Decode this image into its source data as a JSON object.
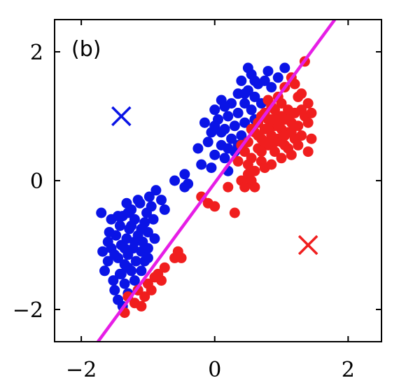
{
  "chart_data": {
    "type": "scatter",
    "title": "",
    "panel_label": "(b)",
    "xlabel": "",
    "ylabel": "",
    "xlim": [
      -2.4,
      2.5
    ],
    "ylim": [
      -2.5,
      2.5
    ],
    "xticks": [
      -2,
      0,
      2
    ],
    "yticks": [
      -2,
      0,
      2
    ],
    "xtick_labels": [
      "−2",
      "0",
      "2"
    ],
    "ytick_labels": [
      "−2",
      "0",
      "2"
    ],
    "grid": false,
    "legend": "none",
    "series": [
      {
        "color": "#0a14e6",
        "marker": "circle",
        "points": [
          [
            -1.65,
            -1.4
          ],
          [
            -1.6,
            -1.25
          ],
          [
            -1.55,
            -1.05
          ],
          [
            -1.52,
            -1.55
          ],
          [
            -1.5,
            -1.7
          ],
          [
            -1.48,
            -0.85
          ],
          [
            -1.45,
            -1.2
          ],
          [
            -1.45,
            -1.85
          ],
          [
            -1.42,
            -0.7
          ],
          [
            -1.4,
            -1.0
          ],
          [
            -1.4,
            -1.45
          ],
          [
            -1.38,
            -0.55
          ],
          [
            -1.35,
            -1.3
          ],
          [
            -1.35,
            -1.6
          ],
          [
            -1.32,
            -0.9
          ],
          [
            -1.3,
            -1.15
          ],
          [
            -1.3,
            -1.75
          ],
          [
            -1.28,
            -0.75
          ],
          [
            -1.25,
            -1.4
          ],
          [
            -1.25,
            -0.45
          ],
          [
            -1.22,
            -1.05
          ],
          [
            -1.2,
            -1.55
          ],
          [
            -1.2,
            -0.6
          ],
          [
            -1.18,
            -1.25
          ],
          [
            -1.15,
            -0.85
          ],
          [
            -1.15,
            -1.7
          ],
          [
            -1.12,
            -0.35
          ],
          [
            -1.1,
            -1.1
          ],
          [
            -1.1,
            -1.4
          ],
          [
            -1.08,
            -0.95
          ],
          [
            -1.05,
            -0.65
          ],
          [
            -1.05,
            -1.25
          ],
          [
            -1.02,
            -0.5
          ],
          [
            -1.0,
            -1.05
          ],
          [
            -1.0,
            -0.8
          ],
          [
            -0.98,
            -0.25
          ],
          [
            -0.95,
            -0.4
          ],
          [
            -0.92,
            -0.6
          ],
          [
            -0.9,
            -0.9
          ],
          [
            -0.88,
            -0.15
          ],
          [
            -1.7,
            -0.5
          ],
          [
            -1.6,
            -0.95
          ],
          [
            -1.55,
            -0.6
          ],
          [
            -1.68,
            -1.1
          ],
          [
            -1.45,
            -0.55
          ],
          [
            -1.3,
            -0.5
          ],
          [
            -1.15,
            -0.3
          ],
          [
            -1.2,
            -0.95
          ],
          [
            -1.35,
            -1.05
          ],
          [
            -1.25,
            -0.7
          ],
          [
            -0.8,
            -0.3
          ],
          [
            -0.75,
            -0.45
          ],
          [
            -1.58,
            -0.8
          ],
          [
            -1.42,
            -1.45
          ],
          [
            -1.38,
            -1.95
          ],
          [
            -1.5,
            -1.15
          ],
          [
            -1.3,
            -1.35
          ],
          [
            -1.1,
            -0.75
          ],
          [
            -1.0,
            -1.2
          ],
          [
            -1.32,
            -0.35
          ],
          [
            -0.6,
            0.0
          ],
          [
            -0.45,
            -0.1
          ],
          [
            -0.4,
            -0.05
          ],
          [
            -0.45,
            0.1
          ],
          [
            -0.25,
            0.5
          ],
          [
            -0.2,
            0.25
          ],
          [
            -0.15,
            0.9
          ],
          [
            -0.1,
            0.6
          ],
          [
            -0.05,
            0.75
          ],
          [
            0.0,
            1.1
          ],
          [
            0.0,
            0.4
          ],
          [
            0.05,
            0.95
          ],
          [
            0.1,
            0.55
          ],
          [
            0.1,
            1.25
          ],
          [
            0.15,
            0.8
          ],
          [
            0.15,
            0.35
          ],
          [
            0.2,
            1.0
          ],
          [
            0.25,
            0.65
          ],
          [
            0.25,
            1.2
          ],
          [
            0.3,
            0.85
          ],
          [
            0.3,
            0.45
          ],
          [
            0.35,
            1.35
          ],
          [
            0.35,
            1.05
          ],
          [
            0.4,
            0.7
          ],
          [
            0.4,
            1.55
          ],
          [
            0.45,
            1.2
          ],
          [
            0.45,
            0.9
          ],
          [
            0.5,
            1.4
          ],
          [
            0.55,
            1.1
          ],
          [
            0.55,
            1.65
          ],
          [
            0.6,
            1.3
          ],
          [
            0.6,
            0.95
          ],
          [
            0.65,
            1.5
          ],
          [
            0.7,
            1.2
          ],
          [
            0.75,
            1.55
          ],
          [
            0.8,
            1.7
          ],
          [
            0.85,
            1.45
          ],
          [
            0.95,
            1.6
          ],
          [
            1.05,
            1.75
          ],
          [
            0.2,
            0.15
          ],
          [
            -0.05,
            0.2
          ],
          [
            0.1,
            0.75
          ],
          [
            0.5,
            1.75
          ],
          [
            0.35,
            0.55
          ],
          [
            0.15,
            1.15
          ],
          [
            0.2,
            0.5
          ],
          [
            0.6,
            1.55
          ],
          [
            0.0,
            0.85
          ],
          [
            0.45,
            1.35
          ]
        ]
      },
      {
        "color": "#f01e1e",
        "marker": "circle",
        "points": [
          [
            -1.35,
            -2.05
          ],
          [
            -1.3,
            -1.8
          ],
          [
            -1.2,
            -1.9
          ],
          [
            -1.15,
            -1.7
          ],
          [
            -1.1,
            -1.95
          ],
          [
            -1.0,
            -1.6
          ],
          [
            -0.95,
            -1.7
          ],
          [
            -0.9,
            -1.5
          ],
          [
            -0.8,
            -1.55
          ],
          [
            -0.75,
            -1.35
          ],
          [
            -0.6,
            -1.2
          ],
          [
            -0.55,
            -1.1
          ],
          [
            -0.5,
            -1.2
          ],
          [
            -1.05,
            -1.8
          ],
          [
            -0.85,
            -1.45
          ],
          [
            -0.2,
            -0.25
          ],
          [
            -0.1,
            -0.35
          ],
          [
            0.0,
            -0.4
          ],
          [
            0.3,
            -0.5
          ],
          [
            0.2,
            -0.1
          ],
          [
            0.4,
            0.0
          ],
          [
            0.45,
            -0.1
          ],
          [
            0.5,
            0.1
          ],
          [
            0.55,
            0.0
          ],
          [
            0.6,
            -0.1
          ],
          [
            0.35,
            0.3
          ],
          [
            0.45,
            0.45
          ],
          [
            0.5,
            0.6
          ],
          [
            0.55,
            0.35
          ],
          [
            0.6,
            0.75
          ],
          [
            0.65,
            0.5
          ],
          [
            0.65,
            0.9
          ],
          [
            0.7,
            0.65
          ],
          [
            0.7,
            0.3
          ],
          [
            0.75,
            0.8
          ],
          [
            0.75,
            1.05
          ],
          [
            0.8,
            0.55
          ],
          [
            0.8,
            0.95
          ],
          [
            0.85,
            0.7
          ],
          [
            0.85,
            1.15
          ],
          [
            0.9,
            0.85
          ],
          [
            0.9,
            0.45
          ],
          [
            0.95,
            1.0
          ],
          [
            0.95,
            0.65
          ],
          [
            1.0,
            0.8
          ],
          [
            1.0,
            1.2
          ],
          [
            1.05,
            0.55
          ],
          [
            1.05,
            0.95
          ],
          [
            1.1,
            0.75
          ],
          [
            1.1,
            1.1
          ],
          [
            1.15,
            0.9
          ],
          [
            1.15,
            0.4
          ],
          [
            1.2,
            1.05
          ],
          [
            1.2,
            0.65
          ],
          [
            1.25,
            0.85
          ],
          [
            1.25,
            1.3
          ],
          [
            1.3,
            0.7
          ],
          [
            1.35,
            1.0
          ],
          [
            1.4,
            0.45
          ],
          [
            1.4,
            0.9
          ],
          [
            0.75,
            0.2
          ],
          [
            0.85,
            0.25
          ],
          [
            0.6,
            0.15
          ],
          [
            1.0,
            0.35
          ],
          [
            1.1,
            0.5
          ],
          [
            1.2,
            1.5
          ],
          [
            1.3,
            1.35
          ],
          [
            1.4,
            1.2
          ],
          [
            1.35,
            1.85
          ],
          [
            1.15,
            1.6
          ],
          [
            0.95,
            1.3
          ],
          [
            0.8,
            1.25
          ],
          [
            1.05,
            1.45
          ],
          [
            0.7,
            1.0
          ],
          [
            0.55,
            0.8
          ],
          [
            0.9,
            0.6
          ],
          [
            1.0,
            0.6
          ],
          [
            1.1,
            0.95
          ],
          [
            0.8,
            0.8
          ],
          [
            0.95,
            0.85
          ],
          [
            0.85,
            0.95
          ],
          [
            1.05,
            0.7
          ],
          [
            0.75,
            0.6
          ],
          [
            0.9,
            1.1
          ],
          [
            1.15,
            0.75
          ],
          [
            1.25,
            0.55
          ],
          [
            1.3,
            1.1
          ],
          [
            0.65,
            0.7
          ],
          [
            1.2,
            0.85
          ],
          [
            0.7,
            0.45
          ],
          [
            1.45,
            0.65
          ],
          [
            1.45,
            1.05
          ],
          [
            0.5,
            0.25
          ],
          [
            0.4,
            0.55
          ],
          [
            1.0,
            1.0
          ]
        ]
      }
    ],
    "crosses": [
      {
        "x": -1.4,
        "y": 1.0,
        "color": "#0a14e6"
      },
      {
        "x": 1.4,
        "y": -1.0,
        "color": "#f01e1e"
      }
    ],
    "lines": [
      {
        "color": "#e61ee6",
        "points": [
          [
            -1.75,
            -2.5
          ],
          [
            1.8,
            2.5
          ]
        ]
      }
    ]
  }
}
